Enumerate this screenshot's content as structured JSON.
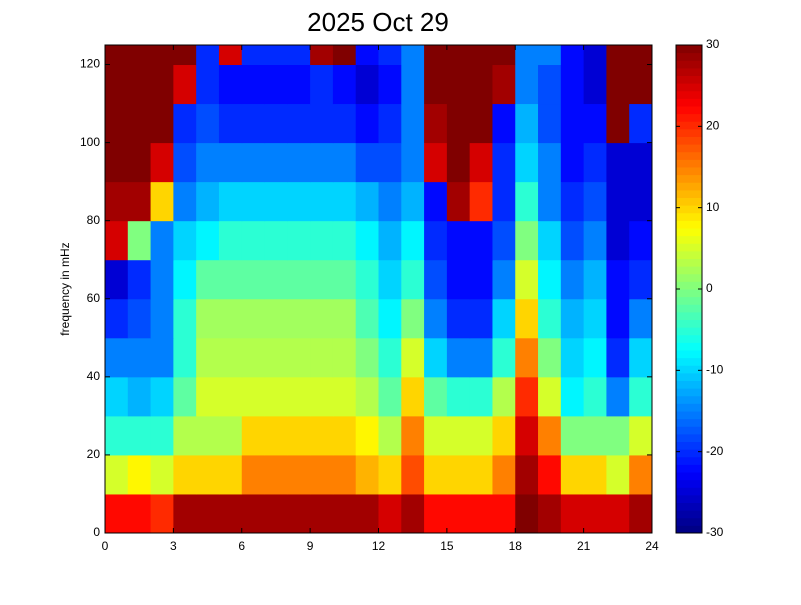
{
  "chart_data": {
    "type": "heatmap",
    "title": "2025 Oct 29",
    "ylabel": "frequency in mHz",
    "colormap": "jet",
    "x": [
      0,
      1,
      2,
      3,
      4,
      5,
      6,
      7,
      8,
      9,
      10,
      11,
      12,
      13,
      14,
      15,
      16,
      17,
      18,
      19,
      20,
      21,
      22,
      23,
      24
    ],
    "y": [
      0,
      10,
      20,
      30,
      40,
      50,
      60,
      70,
      80,
      90,
      100,
      110,
      120,
      125
    ],
    "values": [
      [
        22,
        22,
        20,
        28,
        28,
        28,
        28,
        28,
        28,
        28,
        28,
        28,
        25,
        28,
        22,
        22,
        22,
        22,
        30,
        28,
        25,
        25,
        25,
        28
      ],
      [
        5,
        8,
        5,
        10,
        10,
        10,
        15,
        15,
        15,
        15,
        15,
        12,
        10,
        18,
        10,
        10,
        10,
        15,
        28,
        22,
        10,
        10,
        5,
        15
      ],
      [
        -5,
        -5,
        -5,
        3,
        3,
        3,
        10,
        10,
        10,
        10,
        10,
        8,
        3,
        15,
        5,
        5,
        5,
        10,
        25,
        15,
        0,
        0,
        0,
        5
      ],
      [
        -10,
        -12,
        -10,
        -2,
        5,
        5,
        5,
        5,
        5,
        5,
        5,
        3,
        -2,
        10,
        -2,
        -5,
        -5,
        3,
        20,
        5,
        -8,
        -5,
        -15,
        -5
      ],
      [
        -15,
        -15,
        -15,
        -5,
        3,
        3,
        3,
        3,
        3,
        3,
        3,
        0,
        -5,
        5,
        -10,
        -15,
        -15,
        -5,
        15,
        0,
        -10,
        -8,
        -20,
        -10
      ],
      [
        -20,
        -18,
        -15,
        -5,
        2,
        2,
        2,
        2,
        2,
        2,
        2,
        -3,
        -8,
        0,
        -15,
        -20,
        -20,
        -10,
        10,
        -5,
        -12,
        -10,
        -22,
        -15
      ],
      [
        -25,
        -20,
        -15,
        -8,
        -2,
        -2,
        -2,
        -2,
        -2,
        -2,
        -2,
        -5,
        -10,
        -5,
        -18,
        -22,
        -22,
        -15,
        5,
        -8,
        -15,
        -12,
        -22,
        -20
      ],
      [
        25,
        0,
        -15,
        -10,
        -8,
        -5,
        -5,
        -5,
        -5,
        -5,
        -5,
        -8,
        -12,
        -8,
        -20,
        -22,
        -22,
        -18,
        0,
        -10,
        -18,
        -15,
        -25,
        -22
      ],
      [
        28,
        28,
        10,
        -15,
        -12,
        -10,
        -10,
        -10,
        -10,
        -10,
        -10,
        -12,
        -15,
        -12,
        -22,
        28,
        20,
        -20,
        -5,
        -15,
        -20,
        -18,
        -25,
        -25
      ],
      [
        30,
        30,
        25,
        -18,
        -15,
        -15,
        -15,
        -15,
        -15,
        -15,
        -15,
        -18,
        -18,
        -15,
        25,
        30,
        25,
        -20,
        -10,
        -15,
        -22,
        -20,
        -25,
        -25
      ],
      [
        30,
        30,
        30,
        -20,
        -18,
        -20,
        -20,
        -20,
        -20,
        -20,
        -20,
        -22,
        -20,
        -15,
        28,
        30,
        30,
        -22,
        -12,
        -18,
        -22,
        -22,
        30,
        -20
      ],
      [
        30,
        30,
        30,
        25,
        -20,
        -22,
        -22,
        -22,
        -22,
        -20,
        -22,
        -25,
        -22,
        -15,
        30,
        30,
        30,
        28,
        -15,
        -18,
        -22,
        -25,
        30,
        30
      ],
      [
        30,
        30,
        30,
        30,
        -20,
        25,
        -20,
        -20,
        -20,
        28,
        30,
        -22,
        -20,
        -15,
        30,
        30,
        30,
        30,
        -15,
        -15,
        -22,
        -25,
        30,
        30
      ]
    ],
    "xlim": [
      0,
      24
    ],
    "xticks": [
      0,
      3,
      6,
      9,
      12,
      15,
      18,
      21,
      24
    ],
    "ylim": [
      0,
      125
    ],
    "yticks": [
      0,
      20,
      40,
      60,
      80,
      100,
      120
    ],
    "zlim": [
      -30,
      30
    ],
    "zticks": [
      -30,
      -20,
      -10,
      0,
      10,
      20,
      30
    ]
  }
}
